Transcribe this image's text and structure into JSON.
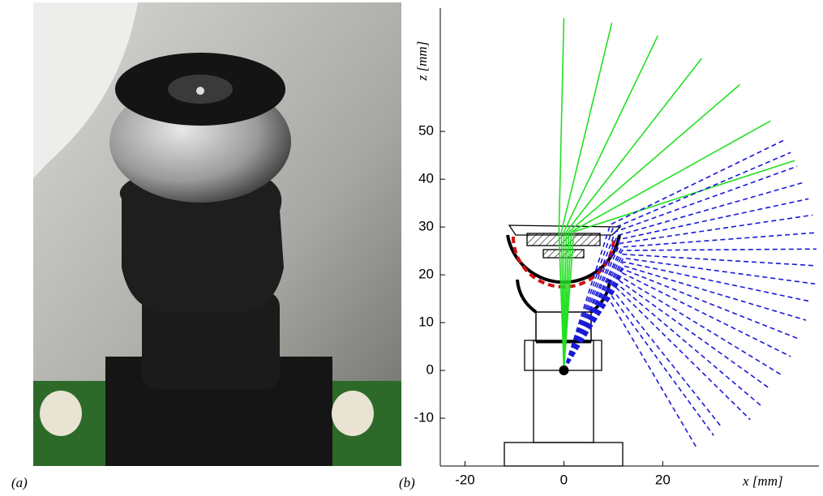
{
  "panel_a": {
    "label": "(a)"
  },
  "chart_data": {
    "type": "rays",
    "panel_label": "(b)",
    "xlabel": "x [mm]",
    "ylabel": "z [mm]",
    "xlim": [
      -25,
      51.6
    ],
    "ylim": [
      -20,
      75.8
    ],
    "xticks": [
      -20,
      0,
      20
    ],
    "yticks": [
      -10,
      0,
      10,
      20,
      30,
      40,
      50
    ],
    "camera": [
      0,
      0
    ],
    "series": [
      {
        "color": "#22e022",
        "dash": false,
        "x0": [
          -1,
          -0.5,
          0,
          0.5,
          1,
          1.5,
          2
        ],
        "y0": [
          29,
          29,
          29,
          29,
          29,
          29,
          29
        ],
        "x": [
          0,
          9.7,
          19,
          27.9,
          35.6,
          41.8,
          46.7
        ],
        "values": [
          73.7,
          72.7,
          70,
          65.3,
          59.8,
          52.2,
          43.9
        ]
      },
      {
        "color": "#1a1ad8",
        "dash": true,
        "x0": [
          9.4,
          9.9,
          10.4,
          10.8,
          11.2,
          11.4,
          11.7,
          11.8,
          11.9,
          12,
          12,
          12,
          11.9,
          11.8,
          11.5,
          11.2,
          10.9,
          10.6,
          10.1,
          9.6,
          9.1
        ],
        "y0": [
          30.5,
          29.7,
          29,
          28.2,
          27.4,
          26.6,
          25.8,
          25.1,
          24.3,
          23.5,
          22.7,
          21.9,
          21.2,
          20.4,
          19.6,
          18.8,
          18,
          17.3,
          16.5,
          15.7,
          15
        ],
        "x": [
          44.8,
          45.9,
          47.2,
          48.4,
          49.5,
          50.3,
          50.8,
          51.1,
          51.1,
          50.8,
          50,
          49,
          47.5,
          45.9,
          43.8,
          41.8,
          39.8,
          37.7,
          32,
          30.3,
          26.7
        ],
        "values": [
          48.3,
          45.6,
          42.7,
          39.3,
          35.9,
          32.5,
          28.8,
          25.4,
          21.9,
          18.1,
          14.4,
          10.5,
          6.6,
          2.9,
          -0.8,
          -3.9,
          -7.3,
          -10.3,
          -12,
          -13.6,
          -15.9
        ]
      }
    ]
  }
}
